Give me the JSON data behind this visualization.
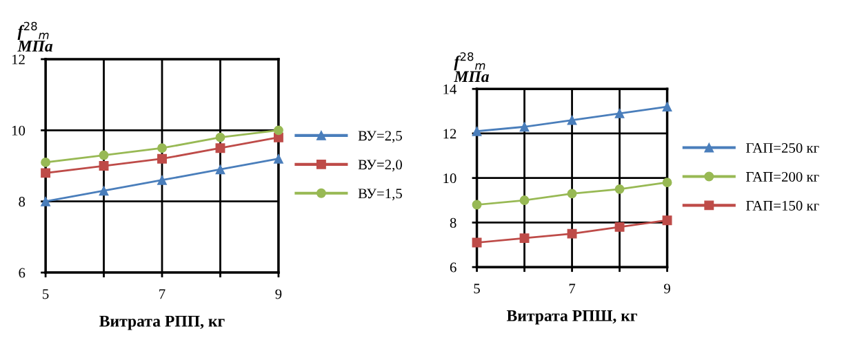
{
  "chart_data": [
    {
      "type": "line",
      "ylabel": "f$^{28}$$_{m}$\nМПа",
      "xlabel": "Витрата РПП, кг",
      "categories": [
        "5",
        null,
        "7",
        null,
        "9"
      ],
      "series": [
        {
          "name": "ВУ=2,5",
          "color": "#4a7ebb",
          "marker": "triangle",
          "values": [
            8.0,
            8.3,
            8.6,
            8.9,
            9.2
          ]
        },
        {
          "name": "ВУ=2,0",
          "color": "#be4b48",
          "marker": "square",
          "values": [
            8.8,
            9.0,
            9.2,
            9.5,
            9.8
          ]
        },
        {
          "name": "ВУ=1,5",
          "color": "#98b954",
          "marker": "circle",
          "values": [
            9.1,
            9.3,
            9.5,
            9.8,
            10.0
          ]
        }
      ],
      "ylim": [
        6,
        12
      ],
      "yticks": [
        6,
        8,
        10,
        12
      ],
      "grid": true,
      "legend": "right",
      "line_style": "solid"
    },
    {
      "type": "line",
      "ylabel": "f$^{28}$$_{m}$\nМПа",
      "xlabel": "Витрата РПШ, кг",
      "categories": [
        "5",
        null,
        "7",
        null,
        "9"
      ],
      "series": [
        {
          "name": "ГАП=250 кг",
          "color": "#4a7ebb",
          "marker": "triangle",
          "values": [
            12.1,
            12.3,
            12.6,
            12.9,
            13.2
          ]
        },
        {
          "name": "ГАП=200 кг",
          "color": "#98b954",
          "marker": "circle",
          "values": [
            8.8,
            9.0,
            9.3,
            9.5,
            9.8
          ]
        },
        {
          "name": "ГАП=150 кг",
          "color": "#be4b48",
          "marker": "square",
          "values": [
            7.1,
            7.3,
            7.5,
            7.8,
            8.1
          ]
        }
      ],
      "ylim": [
        6,
        14
      ],
      "yticks": [
        6,
        8,
        10,
        12,
        14
      ],
      "grid": true,
      "legend": "right",
      "line_style": "solid"
    }
  ]
}
